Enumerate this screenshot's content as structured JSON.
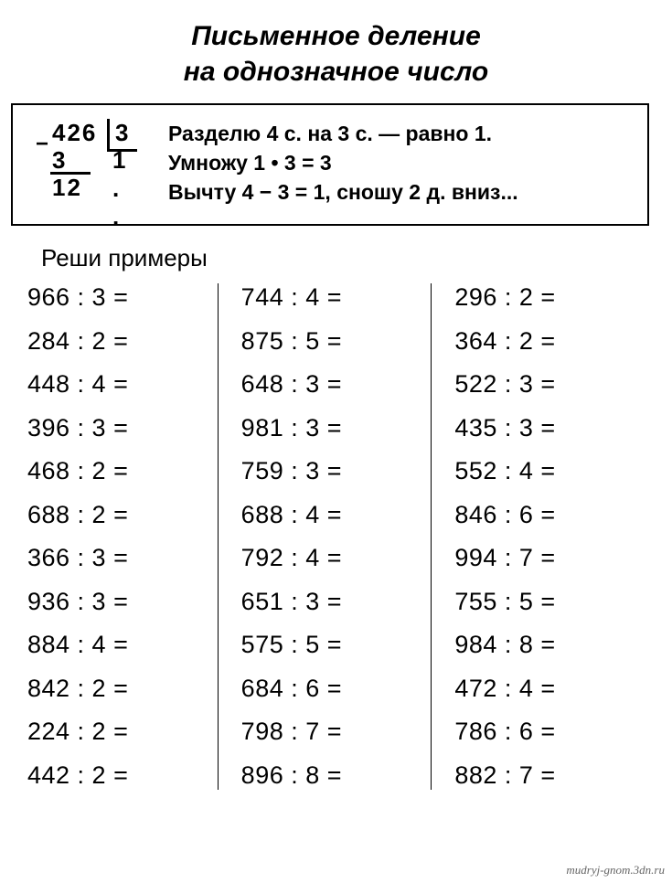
{
  "title": {
    "line1": "Письменное деление",
    "line2": "на однозначное число"
  },
  "example": {
    "dividend": "426",
    "divisor": "3",
    "minus": "−",
    "subtrahend": "3",
    "quotient": "1 . .",
    "remainder": "12",
    "explain_line1": "Разделю 4 с. на 3 с. — равно 1.",
    "explain_line2": "Умножу 1 • 3 = 3",
    "explain_line3": "Вычту 4 − 3 = 1, сношу 2 д. вниз..."
  },
  "section_label": "Реши примеры",
  "columns": [
    [
      {
        "a": 966,
        "b": 3
      },
      {
        "a": 284,
        "b": 2
      },
      {
        "a": 448,
        "b": 4
      },
      {
        "a": 396,
        "b": 3
      },
      {
        "a": 468,
        "b": 2
      },
      {
        "a": 688,
        "b": 2
      },
      {
        "a": 366,
        "b": 3
      },
      {
        "a": 936,
        "b": 3
      },
      {
        "a": 884,
        "b": 4
      },
      {
        "a": 842,
        "b": 2
      },
      {
        "a": 224,
        "b": 2
      },
      {
        "a": 442,
        "b": 2
      }
    ],
    [
      {
        "a": 744,
        "b": 4
      },
      {
        "a": 875,
        "b": 5
      },
      {
        "a": 648,
        "b": 3
      },
      {
        "a": 981,
        "b": 3
      },
      {
        "a": 759,
        "b": 3
      },
      {
        "a": 688,
        "b": 4
      },
      {
        "a": 792,
        "b": 4
      },
      {
        "a": 651,
        "b": 3
      },
      {
        "a": 575,
        "b": 5
      },
      {
        "a": 684,
        "b": 6
      },
      {
        "a": 798,
        "b": 7
      },
      {
        "a": 896,
        "b": 8
      }
    ],
    [
      {
        "a": 296,
        "b": 2
      },
      {
        "a": 364,
        "b": 2
      },
      {
        "a": 522,
        "b": 3
      },
      {
        "a": 435,
        "b": 3
      },
      {
        "a": 552,
        "b": 4
      },
      {
        "a": 846,
        "b": 6
      },
      {
        "a": 994,
        "b": 7
      },
      {
        "a": 755,
        "b": 5
      },
      {
        "a": 984,
        "b": 8
      },
      {
        "a": 472,
        "b": 4
      },
      {
        "a": 786,
        "b": 6
      },
      {
        "a": 882,
        "b": 7
      }
    ]
  ],
  "watermark": "mudryj-gnom.3dn.ru",
  "style": {
    "background_color": "#ffffff",
    "text_color": "#000000",
    "title_fontsize": 30,
    "body_fontsize": 27,
    "explain_fontsize": 23
  }
}
